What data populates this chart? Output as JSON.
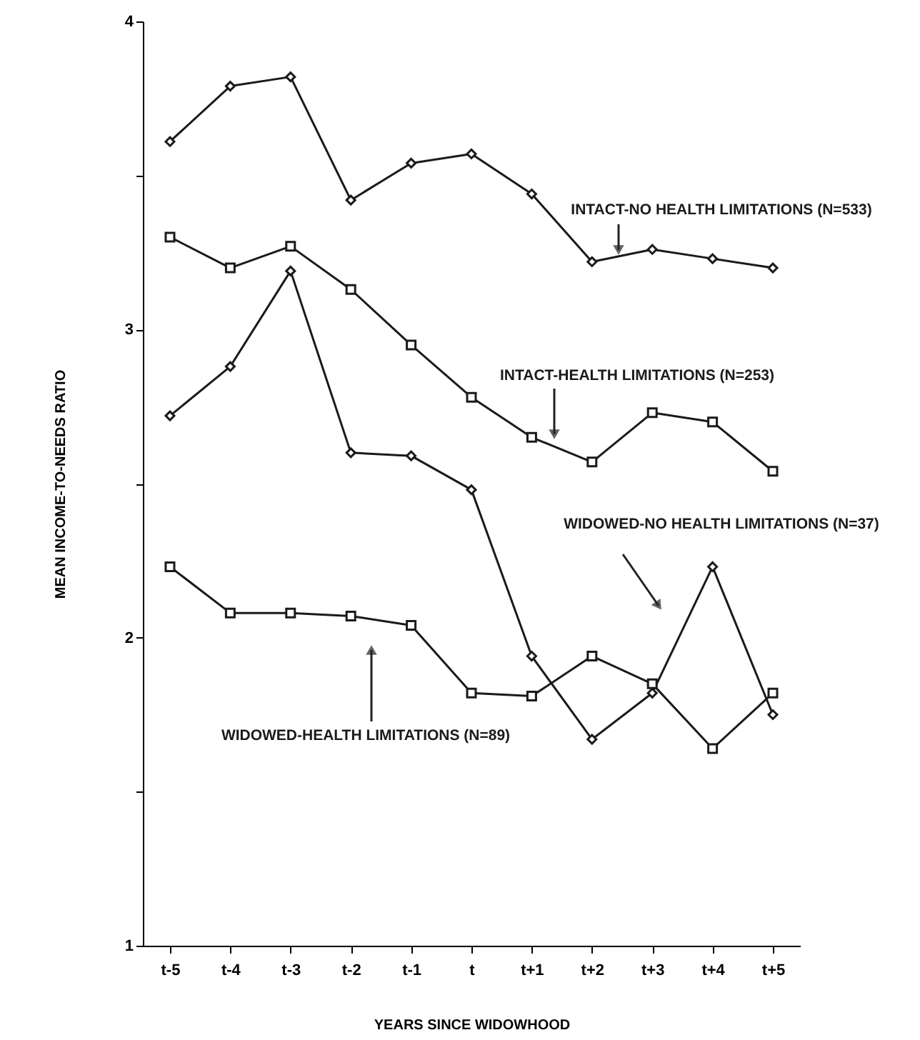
{
  "chart_data": {
    "type": "line",
    "xlabel": "YEARS SINCE WIDOWHOOD",
    "ylabel": "MEAN INCOME-TO-NEEDS RATIO",
    "categories": [
      "t-5",
      "t-4",
      "t-3",
      "t-2",
      "t-1",
      "t",
      "t+1",
      "t+2",
      "t+3",
      "t+4",
      "t+5"
    ],
    "ylim": [
      1,
      4
    ],
    "yticks": [
      1,
      {
        "value": 1.5,
        "label": null
      },
      2,
      {
        "value": 2.5,
        "label": null
      },
      3,
      {
        "value": 3.5,
        "label": null
      },
      4
    ],
    "line_style": "solid",
    "series": [
      {
        "name": "INTACT-NO HEALTH LIMITATIONS (N=533)",
        "color": "#1a1a1a",
        "marker": "diamond",
        "values": [
          3.61,
          3.79,
          3.82,
          3.42,
          3.54,
          3.57,
          3.44,
          3.22,
          3.26,
          3.23,
          3.2
        ]
      },
      {
        "name": "INTACT-HEALTH LIMITATIONS (N=253)",
        "color": "#1a1a1a",
        "marker": "square",
        "values": [
          3.3,
          3.2,
          3.27,
          3.13,
          2.95,
          2.78,
          2.65,
          2.57,
          2.73,
          2.7,
          2.54
        ]
      },
      {
        "name": "WIDOWED-NO HEALTH LIMITATIONS (N=37)",
        "color": "#1a1a1a",
        "marker": "diamond",
        "values": [
          2.72,
          2.88,
          3.19,
          2.6,
          2.59,
          2.48,
          1.94,
          1.67,
          1.82,
          2.23,
          1.75
        ]
      },
      {
        "name": "WIDOWED-HEALTH LIMITATIONS (N=89)",
        "color": "#1a1a1a",
        "marker": "square",
        "values": [
          2.23,
          2.08,
          2.08,
          2.07,
          2.04,
          1.82,
          1.81,
          1.94,
          1.85,
          1.64,
          1.82
        ]
      }
    ]
  }
}
